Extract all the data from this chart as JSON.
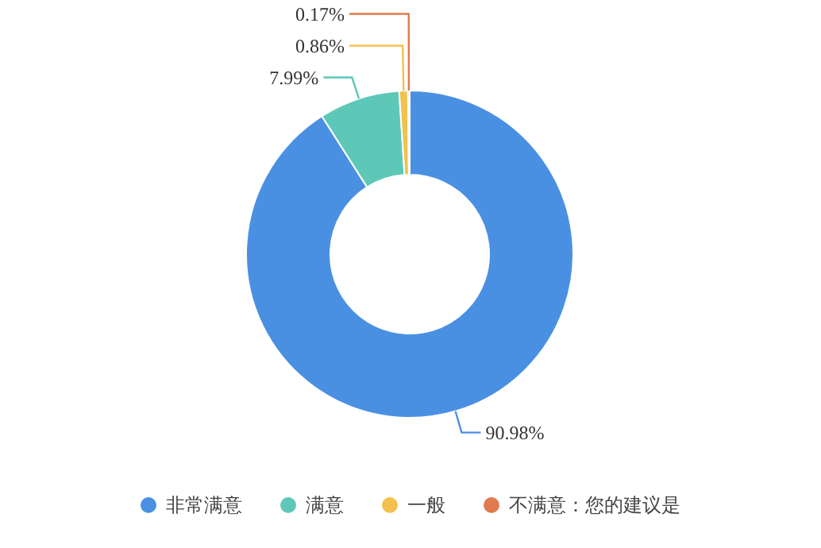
{
  "chart_data": {
    "type": "donut",
    "categories": [
      "非常满意",
      "满意",
      "一般",
      "不满意：您的建议是"
    ],
    "values": [
      90.98,
      7.99,
      0.86,
      0.17
    ],
    "colors": [
      "#4a90e2",
      "#5ec8b8",
      "#f2c14e",
      "#e07b4f"
    ],
    "value_labels": [
      "90.98%",
      "7.99%",
      "0.86%",
      "0.17%"
    ],
    "legend": "bottom"
  }
}
